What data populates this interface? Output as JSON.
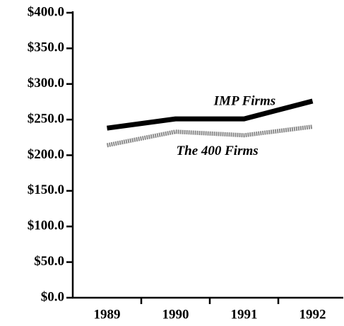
{
  "chart_data": {
    "type": "line",
    "categories": [
      "1989",
      "1990",
      "1991",
      "1992"
    ],
    "series": [
      {
        "name": "IMP Firms",
        "color": "#000000",
        "values": [
          238,
          251,
          251,
          276
        ]
      },
      {
        "name": "The 400 Firms",
        "color": "#8a8a8a",
        "values": [
          214,
          233,
          228,
          240
        ]
      }
    ],
    "ylim": [
      0,
      400
    ],
    "yticks": [
      {
        "value": 0,
        "label": "$0.0"
      },
      {
        "value": 50,
        "label": "$50.0"
      },
      {
        "value": 100,
        "label": "$100.0"
      },
      {
        "value": 150,
        "label": "$150.0"
      },
      {
        "value": 200,
        "label": "$200.0"
      },
      {
        "value": 250,
        "label": "$250.0"
      },
      {
        "value": 300,
        "label": "$300.0"
      },
      {
        "value": 350,
        "label": "$350.0"
      },
      {
        "value": 400,
        "label": "$400.0"
      }
    ],
    "grid": false
  }
}
